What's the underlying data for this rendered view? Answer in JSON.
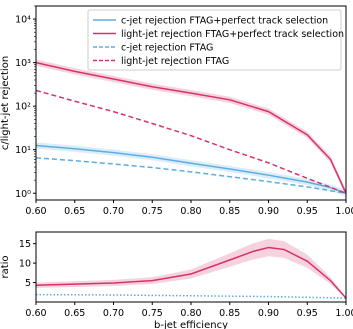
{
  "chart_data": [
    {
      "type": "line",
      "panel": "main",
      "xlabel": "",
      "ylabel": "c/light-jet rejection",
      "xlim": [
        0.6,
        1.0
      ],
      "ylim": [
        0.7,
        20000
      ],
      "yscale": "log",
      "x_ticks": [
        "0.60",
        "0.65",
        "0.70",
        "0.75",
        "0.80",
        "0.85",
        "0.90",
        "0.95",
        "1.00"
      ],
      "y_ticks": [
        {
          "value": 1,
          "label": "10⁰"
        },
        {
          "value": 10,
          "label": "10¹"
        },
        {
          "value": 100,
          "label": "10²"
        },
        {
          "value": 1000,
          "label": "10³"
        },
        {
          "value": 10000,
          "label": "10⁴"
        }
      ],
      "grid": false,
      "legend_position": "top-right",
      "series": [
        {
          "name": "c-jet rejection FTAG+perfect track selection",
          "style": "solid",
          "color": "#5dade2",
          "band": true,
          "x": [
            0.6,
            0.65,
            0.7,
            0.75,
            0.8,
            0.85,
            0.9,
            0.95,
            0.98,
            1.0
          ],
          "y": [
            12.5,
            10.5,
            8.6,
            6.7,
            4.9,
            3.6,
            2.6,
            1.8,
            1.35,
            1.0
          ]
        },
        {
          "name": "light-jet rejection FTAG+perfect track selection",
          "style": "solid",
          "color": "#d6336c",
          "band": true,
          "x": [
            0.6,
            0.65,
            0.7,
            0.75,
            0.8,
            0.85,
            0.9,
            0.95,
            0.98,
            1.0
          ],
          "y": [
            1000,
            630,
            420,
            280,
            200,
            140,
            75,
            22,
            6,
            1.0
          ]
        },
        {
          "name": "c-jet rejection FTAG",
          "style": "dashed",
          "color": "#5dade2",
          "band": false,
          "x": [
            0.6,
            0.65,
            0.7,
            0.75,
            0.8,
            0.85,
            0.9,
            0.95,
            1.0
          ],
          "y": [
            6.5,
            5.6,
            4.7,
            3.9,
            3.1,
            2.4,
            1.85,
            1.4,
            1.0
          ]
        },
        {
          "name": "light-jet rejection FTAG",
          "style": "dashed",
          "color": "#d6336c",
          "band": false,
          "x": [
            0.6,
            0.65,
            0.7,
            0.75,
            0.8,
            0.85,
            0.9,
            0.95,
            1.0
          ],
          "y": [
            230,
            130,
            75,
            40,
            21,
            10,
            5,
            2.2,
            1.0
          ]
        }
      ]
    },
    {
      "type": "line",
      "panel": "ratio",
      "xlabel": "b-jet efficiency",
      "ylabel": "ratio",
      "xlim": [
        0.6,
        1.0
      ],
      "ylim": [
        0,
        18
      ],
      "x_ticks": [
        "0.60",
        "0.65",
        "0.70",
        "0.75",
        "0.80",
        "0.85",
        "0.90",
        "0.95",
        "1.00"
      ],
      "y_ticks": [
        {
          "value": 5,
          "label": "5"
        },
        {
          "value": 10,
          "label": "10"
        },
        {
          "value": 15,
          "label": "15"
        }
      ],
      "grid": false,
      "series": [
        {
          "color": "#d6336c",
          "style": "solid",
          "band": true,
          "x": [
            0.6,
            0.65,
            0.7,
            0.75,
            0.8,
            0.85,
            0.88,
            0.9,
            0.92,
            0.95,
            0.98,
            1.0
          ],
          "y": [
            4.3,
            4.6,
            4.9,
            5.5,
            7.2,
            10.8,
            13.0,
            14.0,
            13.5,
            10.5,
            5.5,
            1.0
          ]
        },
        {
          "color": "#5dade2",
          "style": "dotted",
          "band": false,
          "x": [
            0.6,
            0.7,
            0.8,
            0.9,
            1.0
          ],
          "y": [
            1.9,
            1.8,
            1.6,
            1.4,
            1.0
          ]
        }
      ]
    }
  ]
}
